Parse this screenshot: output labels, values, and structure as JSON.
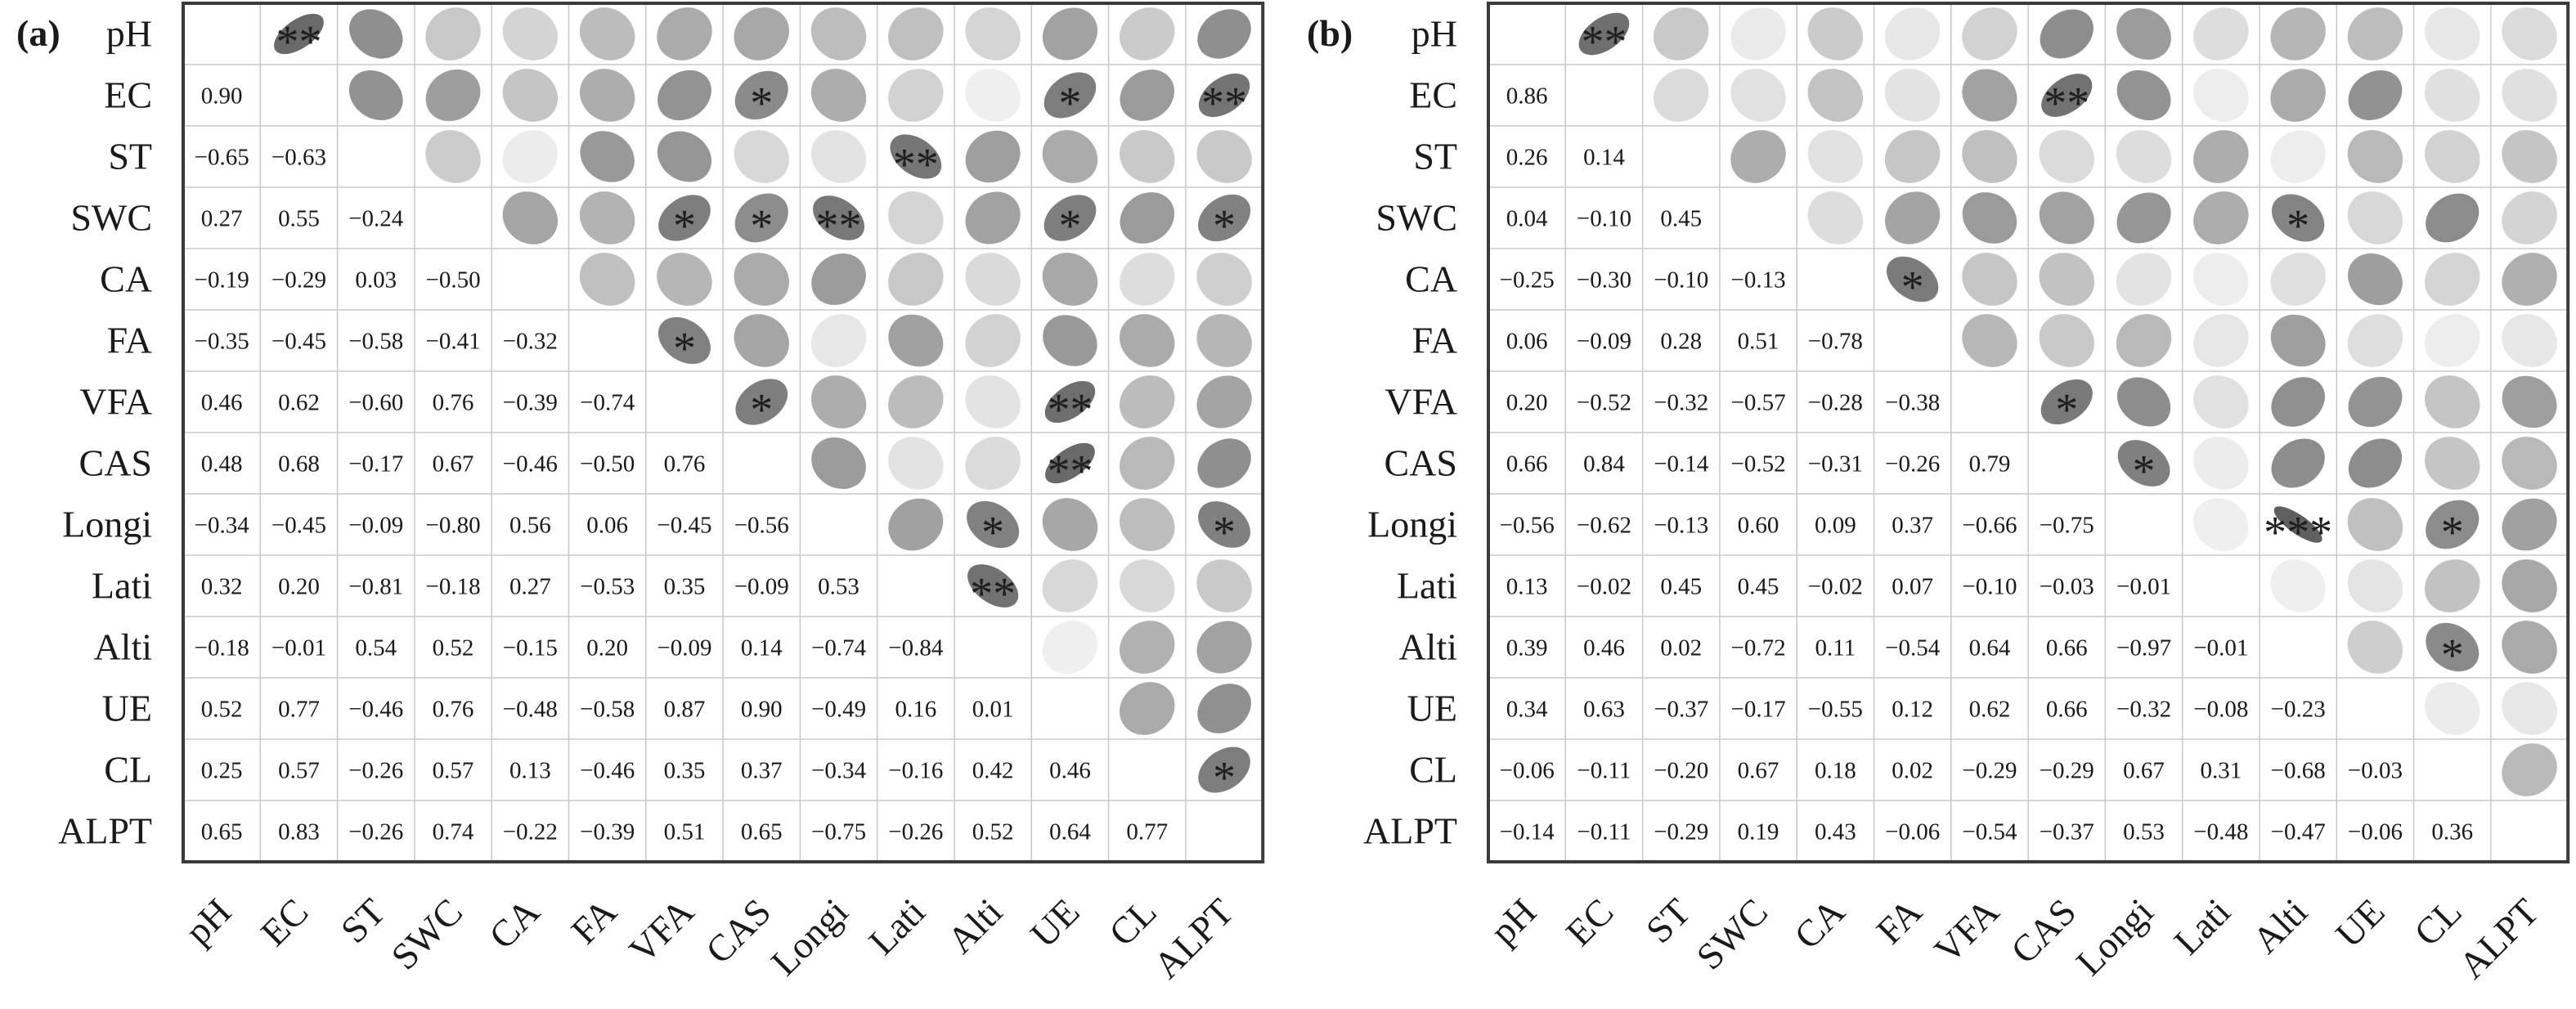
{
  "chart_data": [
    {
      "type": "heatmap",
      "panel_label": "(a)",
      "variables": [
        "pH",
        "EC",
        "ST",
        "SWC",
        "CA",
        "FA",
        "VFA",
        "CAS",
        "Longi",
        "Lati",
        "Alti",
        "UE",
        "CL",
        "ALPT"
      ],
      "lower_triangle_labels": [
        [],
        [
          "0.90"
        ],
        [
          "−0.65",
          "−0.63"
        ],
        [
          "0.27",
          "0.55",
          "−0.24"
        ],
        [
          "−0.19",
          "−0.29",
          "0.03",
          "−0.50"
        ],
        [
          "−0.35",
          "−0.45",
          "−0.58",
          "−0.41",
          "−0.32"
        ],
        [
          "0.46",
          "0.62",
          "−0.60",
          "0.76",
          "−0.39",
          "−0.74"
        ],
        [
          "0.48",
          "0.68",
          "−0.17",
          "0.67",
          "−0.46",
          "−0.50",
          "0.76"
        ],
        [
          "−0.34",
          "−0.45",
          "−0.09",
          "−0.80",
          "0.56",
          "0.06",
          "−0.45",
          "−0.56"
        ],
        [
          "0.32",
          "0.20",
          "−0.81",
          "−0.18",
          "0.27",
          "−0.53",
          "0.35",
          "−0.09",
          "0.53"
        ],
        [
          "−0.18",
          "−0.01",
          "0.54",
          "0.52",
          "−0.15",
          "0.20",
          "−0.09",
          "0.14",
          "−0.74",
          "−0.84"
        ],
        [
          "0.52",
          "0.77",
          "−0.46",
          "0.76",
          "−0.48",
          "−0.58",
          "0.87",
          "0.90",
          "−0.49",
          "0.16",
          "0.01"
        ],
        [
          "0.25",
          "0.57",
          "−0.26",
          "0.57",
          "0.13",
          "−0.46",
          "0.35",
          "0.37",
          "−0.34",
          "−0.16",
          "0.42",
          "0.46"
        ],
        [
          "0.65",
          "0.83",
          "−0.26",
          "0.74",
          "−0.22",
          "−0.39",
          "0.51",
          "0.65",
          "−0.75",
          "−0.26",
          "0.52",
          "0.64",
          "0.77"
        ]
      ],
      "significance": {
        "0,1": "**",
        "1,7": "*",
        "1,11": "*",
        "1,13": "**",
        "2,9": "**",
        "3,6": "*",
        "3,7": "*",
        "3,8": "**",
        "3,11": "*",
        "3,13": "*",
        "5,6": "*",
        "6,7": "*",
        "6,11": "**",
        "7,11": "**",
        "8,10": "*",
        "8,13": "*",
        "9,10": "**",
        "12,13": "*"
      }
    },
    {
      "type": "heatmap",
      "panel_label": "(b)",
      "variables": [
        "pH",
        "EC",
        "ST",
        "SWC",
        "CA",
        "FA",
        "VFA",
        "CAS",
        "Longi",
        "Lati",
        "Alti",
        "UE",
        "CL",
        "ALPT"
      ],
      "lower_triangle_labels": [
        [],
        [
          "0.86"
        ],
        [
          "0.26",
          "0.14"
        ],
        [
          "0.04",
          "−0.10",
          "0.45"
        ],
        [
          "−0.25",
          "−0.30",
          "−0.10",
          "−0.13"
        ],
        [
          "0.06",
          "−0.09",
          "0.28",
          "0.51",
          "−0.78"
        ],
        [
          "0.20",
          "−0.52",
          "−0.32",
          "−0.57",
          "−0.28",
          "−0.38"
        ],
        [
          "0.66",
          "0.84",
          "−0.14",
          "−0.52",
          "−0.31",
          "−0.26",
          "0.79"
        ],
        [
          "−0.56",
          "−0.62",
          "−0.13",
          "0.60",
          "0.09",
          "0.37",
          "−0.66",
          "−0.75"
        ],
        [
          "0.13",
          "−0.02",
          "0.45",
          "0.45",
          "−0.02",
          "0.07",
          "−0.10",
          "−0.03",
          "−0.01"
        ],
        [
          "0.39",
          "0.46",
          "0.02",
          "−0.72",
          "0.11",
          "−0.54",
          "0.64",
          "0.66",
          "−0.97",
          "−0.01"
        ],
        [
          "0.34",
          "0.63",
          "−0.37",
          "−0.17",
          "−0.55",
          "0.12",
          "0.62",
          "0.66",
          "−0.32",
          "−0.08",
          "−0.23"
        ],
        [
          "−0.06",
          "−0.11",
          "−0.20",
          "0.67",
          "0.18",
          "0.02",
          "−0.29",
          "−0.29",
          "0.67",
          "0.31",
          "−0.68",
          "−0.03"
        ],
        [
          "−0.14",
          "−0.11",
          "−0.29",
          "0.19",
          "0.43",
          "−0.06",
          "−0.54",
          "−0.37",
          "0.53",
          "−0.48",
          "−0.47",
          "−0.06",
          "0.36"
        ]
      ],
      "significance": {
        "0,1": "**",
        "1,7": "**",
        "3,10": "*",
        "4,5": "*",
        "6,7": "*",
        "7,8": "*",
        "8,10": "***",
        "8,12": "*",
        "10,12": "*"
      }
    }
  ]
}
